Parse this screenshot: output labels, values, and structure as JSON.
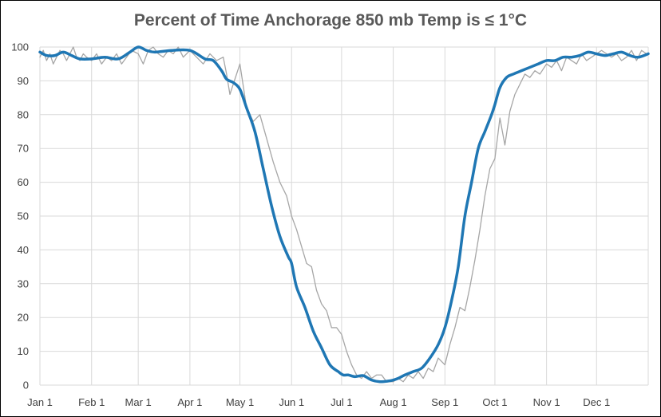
{
  "chart_data": {
    "type": "line",
    "title": "Percent of Time Anchorage 850 mb Temp is ≤ 1°C",
    "xlabel": "",
    "ylabel": "",
    "ylim": [
      0,
      100
    ],
    "yticks": [
      0,
      10,
      20,
      30,
      40,
      50,
      60,
      70,
      80,
      90,
      100
    ],
    "xticks": [
      "Jan 1",
      "Feb 1",
      "Mar 1",
      "Apr 1",
      "May 1",
      "Jun 1",
      "Jul 1",
      "Aug 1",
      "Sep 1",
      "Oct 1",
      "Nov 1",
      "Dec 1"
    ],
    "xtick_day_of_year": [
      1,
      32,
      60,
      91,
      121,
      152,
      182,
      213,
      244,
      274,
      305,
      335
    ],
    "xlim_day_of_year": [
      1,
      366
    ],
    "grid": true,
    "legend": "none",
    "series": [
      {
        "role": "daily",
        "color": "#a6a6a6",
        "x": [
          1,
          3,
          5,
          7,
          9,
          11,
          13,
          15,
          17,
          19,
          21,
          23,
          25,
          27,
          29,
          32,
          35,
          38,
          41,
          44,
          47,
          50,
          53,
          56,
          60,
          63,
          66,
          69,
          72,
          75,
          78,
          81,
          84,
          87,
          91,
          95,
          99,
          103,
          107,
          111,
          113,
          115,
          117,
          121,
          125,
          129,
          133,
          137,
          141,
          145,
          149,
          152,
          155,
          158,
          161,
          164,
          167,
          170,
          173,
          176,
          179,
          182,
          185,
          188,
          191,
          194,
          197,
          200,
          203,
          206,
          209,
          213,
          216,
          219,
          222,
          225,
          228,
          231,
          234,
          237,
          240,
          244,
          247,
          250,
          253,
          256,
          259,
          262,
          265,
          268,
          271,
          274,
          277,
          280,
          283,
          286,
          289,
          292,
          295,
          298,
          301,
          305,
          308,
          311,
          314,
          317,
          320,
          323,
          326,
          329,
          332,
          335,
          338,
          341,
          344,
          347,
          350,
          353,
          356,
          359,
          362,
          365
        ],
        "y": [
          97,
          99,
          96,
          98,
          95,
          97,
          99,
          98,
          96,
          98,
          100,
          97,
          96,
          98,
          97,
          96,
          98,
          95,
          97,
          96,
          98,
          95,
          97,
          99,
          98,
          95,
          99,
          100,
          98,
          97,
          99,
          98,
          100,
          97,
          99,
          97,
          95,
          98,
          96,
          97,
          92,
          86,
          89,
          95,
          82,
          78,
          80,
          73,
          66,
          60,
          56,
          50,
          46,
          41,
          36,
          35,
          28,
          24,
          22,
          17,
          17,
          15,
          10,
          6,
          3,
          2,
          4,
          2,
          3,
          3,
          1,
          1,
          2,
          1,
          3,
          2,
          4,
          2,
          5,
          4,
          8,
          6,
          12,
          17,
          23,
          22,
          29,
          37,
          46,
          56,
          64,
          67,
          79,
          71,
          81,
          86,
          89,
          92,
          91,
          93,
          92,
          95,
          94,
          96,
          93,
          97,
          96,
          95,
          98,
          96,
          97,
          98,
          99,
          98,
          97,
          98,
          96,
          97,
          99,
          96,
          99,
          98
        ]
      },
      {
        "role": "smoothed",
        "color": "#1f77b4",
        "x": [
          1,
          5,
          10,
          15,
          20,
          25,
          32,
          40,
          48,
          55,
          60,
          65,
          70,
          80,
          91,
          100,
          105,
          110,
          113,
          117,
          121,
          125,
          130,
          135,
          140,
          145,
          150,
          152,
          155,
          160,
          165,
          170,
          175,
          180,
          183,
          186,
          190,
          195,
          200,
          205,
          210,
          213,
          216,
          220,
          225,
          230,
          235,
          240,
          244,
          248,
          252,
          256,
          260,
          264,
          268,
          272,
          274,
          277,
          281,
          285,
          290,
          295,
          300,
          305,
          310,
          315,
          320,
          325,
          330,
          335,
          340,
          345,
          350,
          355,
          360,
          366
        ],
        "y": [
          98.5,
          97.5,
          97.5,
          98.5,
          97.5,
          96.5,
          96.5,
          97,
          96.5,
          98.5,
          100,
          99,
          98.5,
          99,
          99,
          96.5,
          96,
          93,
          90.5,
          89.5,
          87.5,
          82,
          75,
          64,
          53,
          44,
          38,
          36,
          29,
          23,
          16,
          11,
          6,
          4,
          3,
          3,
          2.5,
          2.8,
          1.5,
          1,
          1.2,
          1.5,
          2,
          3,
          4,
          5,
          8,
          12,
          17,
          25,
          35,
          50,
          60,
          70,
          75,
          80,
          83,
          88,
          91,
          92,
          93,
          94,
          95,
          96,
          96,
          97,
          97,
          97.5,
          98.5,
          98,
          97.5,
          98,
          98.5,
          97.5,
          97,
          98
        ]
      }
    ]
  }
}
